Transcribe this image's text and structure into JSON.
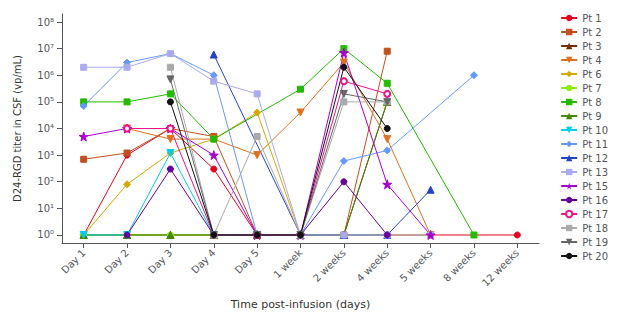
{
  "chart_data": {
    "type": "line",
    "xlabel": "Time post-infusion (days)",
    "ylabel": "D24-RGD titer in CSF (vp/mL)",
    "log": "y",
    "grid": false,
    "legend": "right",
    "xlim": [
      -0.5,
      10.5
    ],
    "xticks": [
      {
        "value": 0,
        "label": "Day 1"
      },
      {
        "value": 1,
        "label": "Day 2"
      },
      {
        "value": 2,
        "label": "Day 3"
      },
      {
        "value": 3,
        "label": "Day 4"
      },
      {
        "value": 4,
        "label": "Day 5"
      },
      {
        "value": 5,
        "label": "1 week"
      },
      {
        "value": 6,
        "label": "2 weeks"
      },
      {
        "value": 7,
        "label": "4 weeks"
      },
      {
        "value": 8,
        "label": "5 weeks"
      },
      {
        "value": 9,
        "label": "8 weeks"
      },
      {
        "value": 10,
        "label": "12 weeks"
      }
    ],
    "ylim": [
      0.5,
      200000000
    ],
    "yticks": [
      {
        "value": 1,
        "label": "10⁰"
      },
      {
        "value": 10,
        "label": "10¹"
      },
      {
        "value": 100,
        "label": "10²"
      },
      {
        "value": 1000,
        "label": "10³"
      },
      {
        "value": 10000,
        "label": "10⁴"
      },
      {
        "value": 100000,
        "label": "10⁵"
      },
      {
        "value": 1000000,
        "label": "10⁶"
      },
      {
        "value": 10000000,
        "label": "10⁷"
      },
      {
        "value": 100000000,
        "label": "10⁸"
      }
    ],
    "series": [
      {
        "name": "Pt 1",
        "color": "#e8001c",
        "marker": "circle",
        "x": [
          0,
          1,
          2,
          3,
          4,
          5,
          6,
          7,
          10
        ],
        "values": [
          1,
          1000,
          10000,
          300,
          1,
          1,
          1,
          1,
          1
        ]
      },
      {
        "name": "Pt 2",
        "color": "#c05020",
        "marker": "square",
        "x": [
          0,
          1,
          2,
          3,
          4,
          5,
          6,
          7
        ],
        "values": [
          700,
          1200,
          10000,
          5000,
          1,
          1,
          1,
          8000000
        ]
      },
      {
        "name": "Pt 3",
        "color": "#7b2d00",
        "marker": "triangle-up",
        "x": [
          0,
          1,
          2,
          3,
          4,
          5,
          6,
          7
        ],
        "values": [
          1,
          1,
          1,
          1,
          1,
          1,
          1,
          100000
        ]
      },
      {
        "name": "Pt 4",
        "color": "#e07020",
        "marker": "triangle-down",
        "x": [
          1,
          2,
          3,
          4,
          5,
          6,
          7,
          8
        ],
        "values": [
          10000,
          4000,
          4000,
          1000,
          40000,
          3000000,
          4000,
          1
        ]
      },
      {
        "name": "Pt 6",
        "color": "#d4aa00",
        "marker": "diamond",
        "x": [
          0,
          1,
          2,
          3,
          4,
          5,
          6,
          7,
          8
        ],
        "values": [
          1,
          80,
          1200,
          4000,
          40000,
          1,
          1,
          1,
          1
        ]
      },
      {
        "name": "Pt 7",
        "color": "#88ee00",
        "marker": "circle",
        "x": [
          0,
          1,
          2,
          3,
          4,
          5,
          6,
          7
        ],
        "values": [
          1,
          1,
          1,
          1,
          1,
          1,
          1,
          1
        ]
      },
      {
        "name": "Pt 8",
        "color": "#22bb00",
        "marker": "square",
        "x": [
          0,
          1,
          2,
          3,
          5,
          6,
          7,
          9
        ],
        "values": [
          100000,
          100000,
          200000,
          4000,
          300000,
          10000000,
          500000,
          1
        ]
      },
      {
        "name": "Pt 9",
        "color": "#448800",
        "marker": "triangle-up",
        "x": [
          0,
          1,
          2,
          3,
          4,
          5,
          6,
          7
        ],
        "values": [
          1,
          1,
          1,
          1,
          1,
          1,
          1,
          100000
        ]
      },
      {
        "name": "Pt 10",
        "color": "#00ccee",
        "marker": "triangle-down",
        "x": [
          0,
          1,
          2,
          3,
          4,
          5
        ],
        "values": [
          1,
          1,
          1200,
          1,
          1,
          1
        ]
      },
      {
        "name": "Pt 11",
        "color": "#6699ff",
        "marker": "diamond",
        "x": [
          0,
          1,
          2,
          3,
          4,
          5,
          6,
          7,
          9
        ],
        "values": [
          70000,
          3000000,
          6500000,
          1000000,
          1,
          1,
          600,
          1500,
          1000000
        ]
      },
      {
        "name": "Pt 12",
        "color": "#2244cc",
        "marker": "triangle-up",
        "x": [
          3,
          5,
          6,
          7,
          8
        ],
        "values": [
          6000000,
          1,
          1,
          1,
          50
        ]
      },
      {
        "name": "Pt 13",
        "color": "#aaaaee",
        "marker": "square",
        "x": [
          0,
          1,
          2,
          3,
          4,
          5,
          6,
          7,
          8
        ],
        "values": [
          2000000,
          2000000,
          6500000,
          600000,
          200000,
          1,
          1,
          1,
          1
        ]
      },
      {
        "name": "Pt 15",
        "color": "#aa00cc",
        "marker": "star",
        "x": [
          0,
          1,
          2,
          3,
          4,
          5,
          6,
          7,
          8
        ],
        "values": [
          5000,
          10000,
          10000,
          1000,
          1,
          1,
          7000000,
          80,
          1
        ]
      },
      {
        "name": "Pt 16",
        "color": "#660099",
        "marker": "circle",
        "x": [
          1,
          2,
          3,
          4,
          5,
          6,
          7
        ],
        "values": [
          1,
          300,
          1,
          1,
          1,
          100,
          1
        ]
      },
      {
        "name": "Pt 17",
        "color": "#ee1188",
        "marker": "open-circle",
        "x": [
          1,
          2,
          3,
          4,
          5,
          6,
          7
        ],
        "values": [
          10000,
          10000,
          1,
          1,
          1,
          600000,
          200000
        ]
      },
      {
        "name": "Pt 18",
        "color": "#aaaaaa",
        "marker": "square",
        "x": [
          2,
          3,
          4,
          5,
          6,
          7
        ],
        "values": [
          2000000,
          1,
          5000,
          1,
          100000,
          100000
        ]
      },
      {
        "name": "Pt 19",
        "color": "#666666",
        "marker": "triangle-down",
        "x": [
          2,
          3,
          4,
          5,
          6,
          7
        ],
        "values": [
          700000,
          1,
          1,
          1,
          200000,
          100000
        ]
      },
      {
        "name": "Pt 20",
        "color": "#111111",
        "marker": "circle",
        "x": [
          2,
          3,
          4,
          5,
          6,
          7
        ],
        "values": [
          100000,
          1,
          1,
          1,
          2000000,
          10000
        ]
      }
    ]
  }
}
